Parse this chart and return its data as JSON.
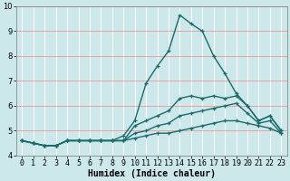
{
  "xlabel": "Humidex (Indice chaleur)",
  "ylabel": "",
  "background_color": "#cce8ea",
  "grid_color_white": "#ffffff",
  "grid_color_pink": "#e8a0a0",
  "line_color": "#1a6b6b",
  "x": [
    0,
    1,
    2,
    3,
    4,
    5,
    6,
    7,
    8,
    9,
    10,
    11,
    12,
    13,
    14,
    15,
    16,
    17,
    18,
    19,
    20,
    21,
    22,
    23
  ],
  "lines": [
    [
      4.6,
      4.5,
      4.4,
      4.4,
      4.6,
      4.6,
      4.6,
      4.6,
      4.6,
      4.8,
      5.4,
      6.9,
      7.6,
      8.2,
      9.65,
      9.3,
      9.0,
      8.0,
      7.3,
      6.5,
      6.0,
      5.4,
      5.6,
      5.0
    ],
    [
      4.6,
      4.5,
      4.4,
      4.4,
      4.6,
      4.6,
      4.6,
      4.6,
      4.6,
      4.6,
      5.2,
      5.4,
      5.6,
      5.8,
      6.3,
      6.4,
      6.3,
      6.4,
      6.3,
      6.4,
      6.0,
      5.4,
      5.6,
      5.0
    ],
    [
      4.6,
      4.5,
      4.4,
      4.4,
      4.6,
      4.6,
      4.6,
      4.6,
      4.6,
      4.6,
      4.9,
      5.0,
      5.2,
      5.3,
      5.6,
      5.7,
      5.8,
      5.9,
      6.0,
      6.1,
      5.7,
      5.3,
      5.4,
      4.9
    ],
    [
      4.6,
      4.5,
      4.4,
      4.4,
      4.6,
      4.6,
      4.6,
      4.6,
      4.6,
      4.6,
      4.7,
      4.8,
      4.9,
      4.9,
      5.0,
      5.1,
      5.2,
      5.3,
      5.4,
      5.4,
      5.3,
      5.2,
      5.1,
      4.9
    ]
  ],
  "ylim": [
    4.0,
    10.0
  ],
  "xlim": [
    -0.5,
    23.5
  ],
  "yticks": [
    4,
    5,
    6,
    7,
    8,
    9,
    10
  ],
  "xticks": [
    0,
    1,
    2,
    3,
    4,
    5,
    6,
    7,
    8,
    9,
    10,
    11,
    12,
    13,
    14,
    15,
    16,
    17,
    18,
    19,
    20,
    21,
    22,
    23
  ],
  "xtick_labels": [
    "0",
    "1",
    "2",
    "3",
    "4",
    "5",
    "6",
    "7",
    "8",
    "9",
    "10",
    "11",
    "12",
    "13",
    "14",
    "15",
    "16",
    "17",
    "18",
    "19",
    "20",
    "21",
    "22",
    "23"
  ],
  "marker": "+",
  "markersize": 3,
  "linewidth": 1.0,
  "xlabel_fontsize": 7,
  "tick_fontsize": 6
}
